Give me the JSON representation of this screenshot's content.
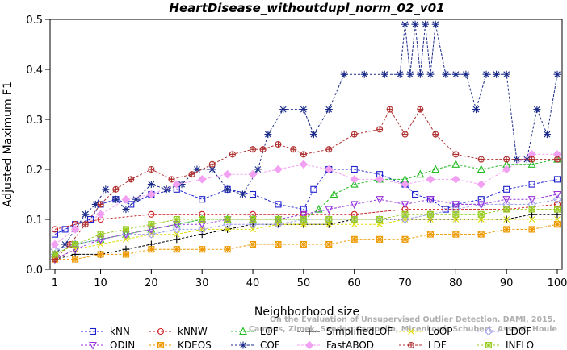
{
  "chart_data": {
    "type": "line",
    "title": "HeartDisease_withoutdupl_norm_02_v01",
    "xlabel": "Neighborhood size",
    "ylabel": "Adjusted Maximum F1",
    "xlim": [
      1,
      100
    ],
    "ylim": [
      0,
      0.5
    ],
    "x_ticks": [
      1,
      10,
      20,
      30,
      40,
      50,
      60,
      70,
      80,
      90,
      100
    ],
    "y_ticks": [
      0.0,
      0.1,
      0.2,
      0.3,
      0.4,
      0.5
    ],
    "x_tick_labels": [
      "1",
      "10",
      "20",
      "30",
      "40",
      "50",
      "60",
      "70",
      "80",
      "90",
      "100"
    ],
    "y_tick_labels": [
      "0.0",
      "0.1",
      "0.2",
      "0.3",
      "0.4",
      "0.5"
    ],
    "legend_position": "bottom",
    "watermark": {
      "line1": "Campos, Zimek, Sander, Campello, Micenková, Schubert, Assent, Houle",
      "line2": "On the Evaluation of Unsupervised Outlier Detection. DAMI, 2015."
    },
    "series": [
      {
        "name": "kNN",
        "color": "#1f1fd0",
        "marker": "square",
        "x": [
          1,
          3,
          5,
          8,
          10,
          13,
          16,
          20,
          25,
          30,
          35,
          40,
          45,
          50,
          52,
          55,
          60,
          65,
          70,
          72,
          75,
          78,
          80,
          85,
          90,
          95,
          100
        ],
        "y": [
          0.07,
          0.08,
          0.09,
          0.1,
          0.13,
          0.14,
          0.13,
          0.15,
          0.16,
          0.14,
          0.16,
          0.15,
          0.13,
          0.12,
          0.16,
          0.2,
          0.2,
          0.19,
          0.17,
          0.15,
          0.14,
          0.12,
          0.13,
          0.14,
          0.16,
          0.17,
          0.18
        ]
      },
      {
        "name": "kNNW",
        "color": "#cc2020",
        "marker": "circle",
        "x": [
          1,
          5,
          10,
          20,
          30,
          40,
          50,
          60,
          70,
          80,
          90,
          100
        ],
        "y": [
          0.08,
          0.09,
          0.1,
          0.11,
          0.11,
          0.11,
          0.11,
          0.11,
          0.12,
          0.12,
          0.12,
          0.13
        ]
      },
      {
        "name": "LOF",
        "color": "#22bb22",
        "marker": "triangle-up",
        "x": [
          1,
          5,
          10,
          15,
          20,
          25,
          30,
          35,
          40,
          45,
          50,
          53,
          56,
          60,
          65,
          70,
          73,
          76,
          80,
          85,
          90,
          95,
          100
        ],
        "y": [
          0.03,
          0.05,
          0.06,
          0.07,
          0.08,
          0.09,
          0.1,
          0.1,
          0.1,
          0.1,
          0.1,
          0.12,
          0.15,
          0.17,
          0.18,
          0.18,
          0.19,
          0.2,
          0.21,
          0.2,
          0.21,
          0.21,
          0.22
        ]
      },
      {
        "name": "SimplifiedLOF",
        "color": "#000000",
        "marker": "plus",
        "x": [
          1,
          5,
          10,
          15,
          20,
          25,
          30,
          35,
          40,
          45,
          50,
          55,
          60,
          65,
          70,
          75,
          80,
          85,
          90,
          95,
          100
        ],
        "y": [
          0.02,
          0.03,
          0.03,
          0.04,
          0.05,
          0.06,
          0.07,
          0.08,
          0.09,
          0.09,
          0.09,
          0.09,
          0.1,
          0.1,
          0.1,
          0.1,
          0.1,
          0.1,
          0.1,
          0.11,
          0.11
        ]
      },
      {
        "name": "LoOP",
        "color": "#dddd00",
        "marker": "cross",
        "x": [
          1,
          5,
          10,
          15,
          20,
          25,
          30,
          35,
          40,
          45,
          50,
          55,
          60,
          65,
          70,
          75,
          80,
          85,
          90,
          95,
          100
        ],
        "y": [
          0.02,
          0.04,
          0.05,
          0.06,
          0.07,
          0.07,
          0.08,
          0.08,
          0.08,
          0.09,
          0.09,
          0.09,
          0.09,
          0.09,
          0.1,
          0.1,
          0.1,
          0.1,
          0.1,
          0.1,
          0.1
        ]
      },
      {
        "name": "LDOF",
        "color": "#a0a0ee",
        "marker": "diamond",
        "x": [
          1,
          5,
          10,
          15,
          20,
          25,
          30,
          35,
          40,
          45,
          50,
          55,
          60,
          65,
          70,
          75,
          80,
          85,
          90,
          95,
          100
        ],
        "y": [
          0.04,
          0.05,
          0.06,
          0.07,
          0.07,
          0.08,
          0.08,
          0.09,
          0.09,
          0.09,
          0.1,
          0.1,
          0.1,
          0.1,
          0.1,
          0.11,
          0.12,
          0.13,
          0.13,
          0.13,
          0.14
        ]
      },
      {
        "name": "ODIN",
        "color": "#9933dd",
        "marker": "triangle-down",
        "x": [
          1,
          5,
          10,
          15,
          20,
          25,
          30,
          35,
          40,
          45,
          50,
          55,
          60,
          65,
          70,
          75,
          80,
          85,
          90,
          95,
          100
        ],
        "y": [
          0.02,
          0.04,
          0.06,
          0.07,
          0.08,
          0.09,
          0.09,
          0.1,
          0.1,
          0.1,
          0.11,
          0.12,
          0.13,
          0.14,
          0.13,
          0.14,
          0.13,
          0.13,
          0.14,
          0.14,
          0.15
        ]
      },
      {
        "name": "KDEOS",
        "color": "#ee9900",
        "marker": "asterisk-box",
        "x": [
          1,
          5,
          10,
          15,
          20,
          25,
          30,
          35,
          40,
          45,
          50,
          55,
          60,
          65,
          70,
          75,
          80,
          85,
          90,
          95,
          100
        ],
        "y": [
          0.02,
          0.02,
          0.03,
          0.03,
          0.04,
          0.04,
          0.04,
          0.04,
          0.05,
          0.05,
          0.05,
          0.05,
          0.06,
          0.06,
          0.06,
          0.07,
          0.07,
          0.07,
          0.08,
          0.08,
          0.09
        ]
      },
      {
        "name": "COF",
        "color": "#1a2a88",
        "marker": "asterisk",
        "x": [
          1,
          3,
          5,
          7,
          9,
          11,
          13,
          15,
          17,
          20,
          23,
          26,
          29,
          32,
          35,
          38,
          41,
          43,
          46,
          50,
          52,
          55,
          58,
          62,
          66,
          69,
          70,
          71,
          72,
          73,
          74,
          75,
          76,
          78,
          80,
          82,
          84,
          86,
          88,
          90,
          92,
          94,
          96,
          98,
          100
        ],
        "y": [
          0.03,
          0.05,
          0.08,
          0.11,
          0.13,
          0.16,
          0.14,
          0.12,
          0.14,
          0.17,
          0.16,
          0.17,
          0.2,
          0.2,
          0.16,
          0.15,
          0.2,
          0.27,
          0.32,
          0.32,
          0.27,
          0.32,
          0.39,
          0.39,
          0.39,
          0.39,
          0.49,
          0.39,
          0.49,
          0.39,
          0.49,
          0.39,
          0.49,
          0.39,
          0.39,
          0.39,
          0.32,
          0.39,
          0.39,
          0.39,
          0.22,
          0.22,
          0.32,
          0.27,
          0.39
        ]
      },
      {
        "name": "FastABOD",
        "color": "#f2a0f2",
        "marker": "diamond-filled",
        "x": [
          1,
          5,
          10,
          15,
          20,
          25,
          30,
          35,
          40,
          45,
          50,
          55,
          60,
          65,
          70,
          75,
          80,
          85,
          90,
          95,
          100
        ],
        "y": [
          0.05,
          0.08,
          0.11,
          0.14,
          0.15,
          0.17,
          0.18,
          0.19,
          0.19,
          0.2,
          0.21,
          0.2,
          0.18,
          0.18,
          0.17,
          0.18,
          0.18,
          0.17,
          0.2,
          0.23,
          0.23
        ]
      },
      {
        "name": "LDF",
        "color": "#b03030",
        "marker": "circle-plus",
        "x": [
          1,
          4,
          7,
          10,
          13,
          16,
          20,
          24,
          28,
          32,
          36,
          40,
          42,
          45,
          48,
          50,
          55,
          60,
          65,
          67,
          70,
          73,
          76,
          80,
          85,
          90,
          95,
          100
        ],
        "y": [
          0.02,
          0.05,
          0.09,
          0.13,
          0.16,
          0.18,
          0.2,
          0.18,
          0.19,
          0.21,
          0.23,
          0.24,
          0.24,
          0.25,
          0.24,
          0.23,
          0.24,
          0.27,
          0.28,
          0.32,
          0.27,
          0.32,
          0.27,
          0.23,
          0.22,
          0.22,
          0.22,
          0.22
        ]
      },
      {
        "name": "INFLO",
        "color": "#99cc22",
        "marker": "asterisk-box",
        "x": [
          1,
          5,
          10,
          15,
          20,
          25,
          30,
          35,
          40,
          45,
          50,
          55,
          60,
          65,
          70,
          75,
          80,
          85,
          90,
          95,
          100
        ],
        "y": [
          0.03,
          0.05,
          0.07,
          0.08,
          0.09,
          0.1,
          0.1,
          0.1,
          0.1,
          0.1,
          0.1,
          0.1,
          0.1,
          0.1,
          0.11,
          0.11,
          0.11,
          0.11,
          0.12,
          0.12,
          0.12
        ]
      }
    ]
  }
}
